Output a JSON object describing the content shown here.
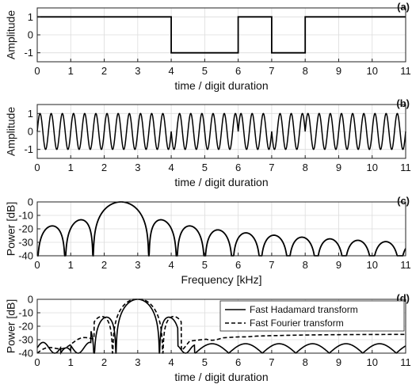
{
  "chart_data": [
    {
      "panel_label": "(a)",
      "type": "line",
      "ylabel": "Amplitude",
      "xlabel": "time / digit duration",
      "xlim": [
        0,
        11
      ],
      "ylim": [
        -1.5,
        1.5
      ],
      "xticks": [
        0,
        1,
        2,
        3,
        4,
        5,
        6,
        7,
        8,
        9,
        10,
        11
      ],
      "yticks": [
        -1,
        0,
        1
      ],
      "grid": true,
      "series": [
        {
          "step_x": [
            0,
            4,
            4,
            6,
            6,
            7,
            7,
            8,
            8,
            11
          ],
          "step_y": [
            1,
            1,
            -1,
            -1,
            1,
            1,
            -1,
            -1,
            1,
            1
          ]
        }
      ]
    },
    {
      "panel_label": "(b)",
      "type": "line",
      "ylabel": "Amplitude",
      "xlabel": "time / digit duration",
      "xlim": [
        0,
        11
      ],
      "ylim": [
        -1.5,
        1.5
      ],
      "xticks": [
        0,
        1,
        2,
        3,
        4,
        5,
        6,
        7,
        8,
        9,
        10,
        11
      ],
      "yticks": [
        -1,
        0,
        1
      ],
      "grid": true,
      "series": [
        {
          "cycles_per_digit": 3,
          "phase_flips_at": [
            4,
            6,
            7,
            8
          ]
        }
      ]
    },
    {
      "panel_label": "(c)",
      "type": "line",
      "ylabel": "Power [dB]",
      "xlabel": "Frequency [kHz]",
      "xlim": [
        0,
        11
      ],
      "ylim": [
        -40,
        0
      ],
      "xticks": [
        0,
        1,
        2,
        3,
        4,
        5,
        6,
        7,
        8,
        9,
        10,
        11
      ],
      "yticks": [
        0,
        -10,
        -20,
        -30,
        -40
      ],
      "grid": true,
      "series": [
        {
          "main_lobe_center_khz": 2.5,
          "null_spacing_khz": 0.833
        }
      ]
    },
    {
      "panel_label": "(d)",
      "type": "line",
      "ylabel": "Power [dB]",
      "xlabel": "time / digit duration",
      "xlim": [
        0,
        11
      ],
      "ylim": [
        -40,
        0
      ],
      "xticks": [
        0,
        1,
        2,
        3,
        4,
        5,
        6,
        7,
        8,
        9,
        10,
        11
      ],
      "yticks": [
        0,
        -10,
        -20,
        -30,
        -40
      ],
      "grid": true,
      "legend_position": "top-right",
      "series": [
        {
          "name": "Fast Hadamard transform",
          "style": "solid"
        },
        {
          "name": "Fast Fourier transform",
          "style": "dashed"
        }
      ]
    }
  ]
}
